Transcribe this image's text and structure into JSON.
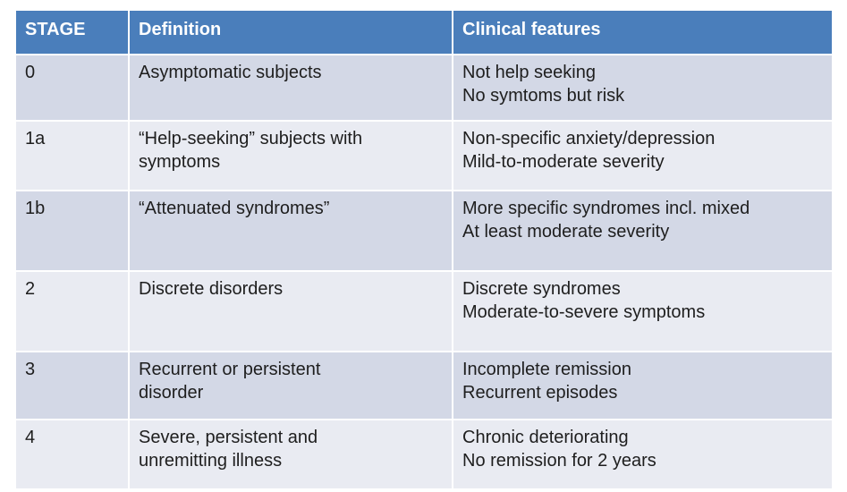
{
  "table": {
    "headers": [
      "STAGE",
      "Definition",
      "Clinical features"
    ],
    "rows": [
      {
        "stage": "0",
        "definition": [
          "Asymptomatic subjects"
        ],
        "features": [
          "Not help seeking",
          "No symtoms but risk"
        ]
      },
      {
        "stage": "1a",
        "definition": [
          "“Help-seeking” subjects with",
          "symptoms"
        ],
        "features": [
          "Non-specific anxiety/depression",
          "Mild-to-moderate severity"
        ]
      },
      {
        "stage": "1b",
        "definition": [
          "“Attenuated syndromes”"
        ],
        "features": [
          "More specific syndromes incl. mixed",
          "At least moderate severity"
        ]
      },
      {
        "stage": "2",
        "definition": [
          "Discrete disorders"
        ],
        "features": [
          "Discrete syndromes",
          "Moderate-to-severe symptoms"
        ]
      },
      {
        "stage": "3",
        "definition": [
          "Recurrent or persistent",
          "disorder"
        ],
        "features": [
          "Incomplete remission",
          "Recurrent episodes"
        ]
      },
      {
        "stage": "4",
        "definition": [
          "Severe, persistent and",
          "unremitting illness"
        ],
        "features": [
          "Chronic deteriorating",
          "No remission for 2 years"
        ]
      }
    ]
  },
  "colors": {
    "header_bg": "#4a7ebb",
    "row_dark": "#d3d8e6",
    "row_light": "#e9ebf2"
  }
}
